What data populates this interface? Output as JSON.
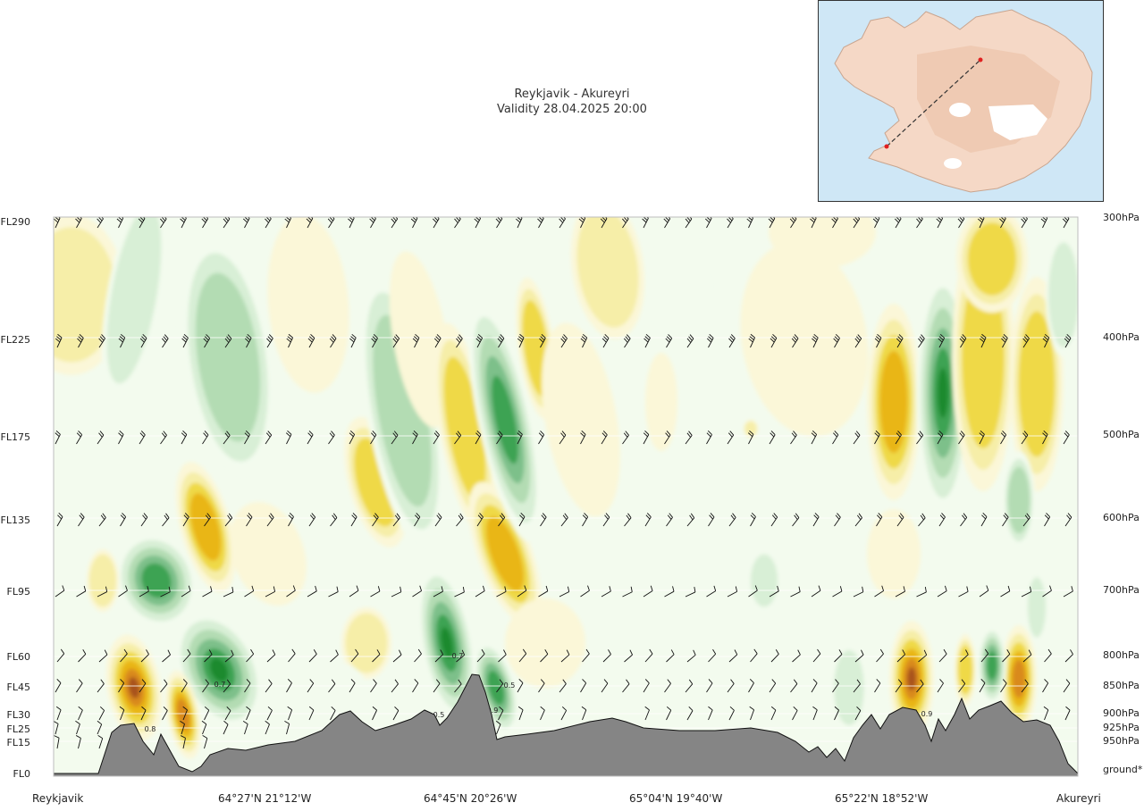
{
  "header": {
    "route": "Reykjavik - Akureyri",
    "validity": "Validity 28.04.2025 20:00"
  },
  "chart_data": {
    "type": "heatmap",
    "title": "Reykjavik - Akureyri",
    "subtitle": "Validity 28.04.2025 20:00",
    "y_left_ticks": [
      "FL290",
      "FL225",
      "FL175",
      "FL135",
      "FL95",
      "FL60",
      "FL45",
      "FL30",
      "FL25",
      "FL15",
      "FL0"
    ],
    "y_right_ticks": [
      "300hPa",
      "400hPa",
      "500hPa",
      "600hPa",
      "700hPa",
      "800hPa",
      "850hPa",
      "900hPa",
      "925hPa",
      "950hPa",
      "ground*"
    ],
    "x_ticks": [
      "Reykjavik",
      "64°27'N 21°12'W",
      "64°45'N 20°26'W",
      "65°04'N 19°40'W",
      "65°22'N 18°52'W",
      "Akureyri"
    ],
    "contour_labels": [
      "0.7",
      "0.8",
      "0.7",
      "0.5",
      "0.5",
      "0.9",
      "0.9"
    ],
    "wind_barb_levels": [
      "FL290",
      "FL225",
      "FL175",
      "FL135",
      "FL95",
      "FL60",
      "FL45",
      "FL30",
      "FL25",
      "FL15"
    ],
    "color_scale": {
      "positive": [
        "#fbf7d8",
        "#f6eea8",
        "#efd946",
        "#e9b613",
        "#d98a1a",
        "#a9531a"
      ],
      "negative": [
        "#f3fbee",
        "#d8efd6",
        "#b3dcb3",
        "#7dc08a",
        "#3ea352",
        "#1b8a2e"
      ]
    },
    "terrain_color": "#858585",
    "grid": true,
    "legend": "none"
  },
  "inset_map": {
    "water_color": "#cfe7f6",
    "land_color": "#f5d8c6",
    "route_color": "#333333",
    "endpoint_color": "#e02020"
  }
}
